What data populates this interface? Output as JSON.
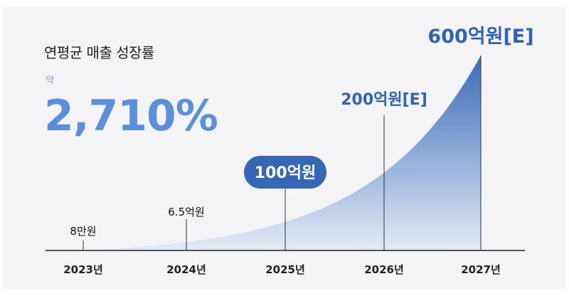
{
  "subtitle": "연평균 매출 성장률",
  "approx_label": "약",
  "growth_rate": "2,710%",
  "colors": {
    "accent_text": "#5b8fde",
    "label_blue": "#2f62b8",
    "area_top": "#3a6bb8",
    "area_bottom": "#e3ebf6",
    "pill_fill": "#3567b4"
  },
  "chart_data": {
    "type": "area",
    "title": "연평균 매출 성장률",
    "xlabel": "",
    "ylabel": "",
    "categories": [
      "2023년",
      "2024년",
      "2025년",
      "2026년",
      "2027년"
    ],
    "values": [
      0.0008,
      6.5,
      100,
      200,
      600
    ],
    "unit": "억원",
    "data_labels": [
      "8만원",
      "6.5억원",
      "100억원",
      "200억원[E]",
      "600억원[E]"
    ],
    "highlight_index": 2,
    "grid": false,
    "legend": "none"
  }
}
